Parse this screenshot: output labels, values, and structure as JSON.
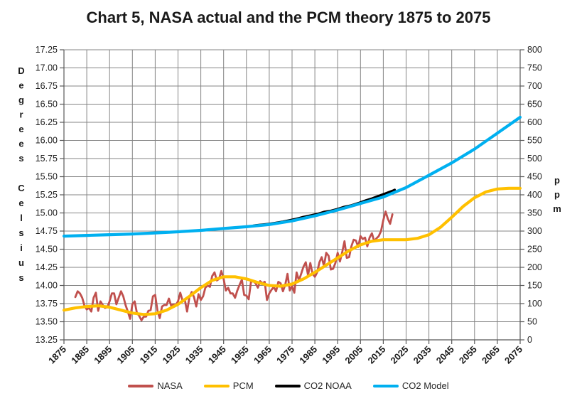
{
  "chart_data": {
    "type": "line",
    "title": "Chart 5, NASA actual and the PCM theory 1875 to 2075",
    "grid": true,
    "grid_color": "#848484",
    "axis_color": "#595959",
    "text_color": "#1a1a1a",
    "legend_position": "bottom",
    "x_axis": {
      "min": 1875,
      "max": 2075,
      "tick_step": 10,
      "ticks": [
        "1875",
        "1885",
        "1895",
        "1905",
        "1915",
        "1925",
        "1935",
        "1945",
        "1955",
        "1965",
        "1975",
        "1985",
        "1995",
        "2005",
        "2015",
        "2025",
        "2035",
        "2045",
        "2055",
        "2065",
        "2075"
      ]
    },
    "y_left": {
      "label": "Degrees Celsius",
      "min": 13.25,
      "max": 17.25,
      "tick_step": 0.25,
      "ticks": [
        "17.25",
        "17.00",
        "16.75",
        "16.50",
        "16.25",
        "16.00",
        "15.75",
        "15.50",
        "15.25",
        "15.00",
        "14.75",
        "14.50",
        "14.25",
        "14.00",
        "13.75",
        "13.50",
        "13.25"
      ]
    },
    "y_right": {
      "label": "ppm",
      "min": 0,
      "max": 800,
      "tick_step": 50,
      "ticks": [
        "800",
        "750",
        "700",
        "650",
        "600",
        "550",
        "500",
        "450",
        "400",
        "350",
        "300",
        "250",
        "200",
        "150",
        "100",
        "50",
        "0"
      ]
    },
    "series": [
      {
        "name": "NASA",
        "axis": "left",
        "color": "#C0504D",
        "width": 2.8,
        "z": 2,
        "points": [
          [
            1880,
            13.84
          ],
          [
            1881,
            13.92
          ],
          [
            1882,
            13.89
          ],
          [
            1883,
            13.83
          ],
          [
            1884,
            13.72
          ],
          [
            1885,
            13.67
          ],
          [
            1886,
            13.69
          ],
          [
            1887,
            13.64
          ],
          [
            1888,
            13.83
          ],
          [
            1889,
            13.9
          ],
          [
            1890,
            13.65
          ],
          [
            1891,
            13.78
          ],
          [
            1892,
            13.73
          ],
          [
            1893,
            13.69
          ],
          [
            1894,
            13.7
          ],
          [
            1895,
            13.78
          ],
          [
            1896,
            13.89
          ],
          [
            1897,
            13.89
          ],
          [
            1898,
            13.74
          ],
          [
            1899,
            13.83
          ],
          [
            1900,
            13.92
          ],
          [
            1901,
            13.85
          ],
          [
            1902,
            13.73
          ],
          [
            1903,
            13.64
          ],
          [
            1904,
            13.54
          ],
          [
            1905,
            13.74
          ],
          [
            1906,
            13.78
          ],
          [
            1907,
            13.62
          ],
          [
            1908,
            13.58
          ],
          [
            1909,
            13.52
          ],
          [
            1910,
            13.57
          ],
          [
            1911,
            13.57
          ],
          [
            1912,
            13.65
          ],
          [
            1913,
            13.66
          ],
          [
            1914,
            13.85
          ],
          [
            1915,
            13.87
          ],
          [
            1916,
            13.65
          ],
          [
            1917,
            13.55
          ],
          [
            1918,
            13.71
          ],
          [
            1919,
            13.73
          ],
          [
            1920,
            13.73
          ],
          [
            1921,
            13.82
          ],
          [
            1922,
            13.72
          ],
          [
            1923,
            13.74
          ],
          [
            1924,
            13.73
          ],
          [
            1925,
            13.78
          ],
          [
            1926,
            13.9
          ],
          [
            1927,
            13.79
          ],
          [
            1928,
            13.8
          ],
          [
            1929,
            13.64
          ],
          [
            1930,
            13.84
          ],
          [
            1931,
            13.91
          ],
          [
            1932,
            13.84
          ],
          [
            1933,
            13.71
          ],
          [
            1934,
            13.88
          ],
          [
            1935,
            13.8
          ],
          [
            1936,
            13.85
          ],
          [
            1937,
            13.97
          ],
          [
            1938,
            14.0
          ],
          [
            1939,
            13.98
          ],
          [
            1940,
            14.13
          ],
          [
            1941,
            14.18
          ],
          [
            1942,
            14.07
          ],
          [
            1943,
            14.09
          ],
          [
            1944,
            14.2
          ],
          [
            1945,
            14.09
          ],
          [
            1946,
            13.93
          ],
          [
            1947,
            13.97
          ],
          [
            1948,
            13.89
          ],
          [
            1949,
            13.89
          ],
          [
            1950,
            13.83
          ],
          [
            1951,
            13.93
          ],
          [
            1952,
            14.01
          ],
          [
            1953,
            14.08
          ],
          [
            1954,
            13.87
          ],
          [
            1955,
            13.86
          ],
          [
            1956,
            13.81
          ],
          [
            1957,
            14.05
          ],
          [
            1958,
            14.06
          ],
          [
            1959,
            14.03
          ],
          [
            1960,
            13.97
          ],
          [
            1961,
            14.06
          ],
          [
            1962,
            14.03
          ],
          [
            1963,
            14.05
          ],
          [
            1964,
            13.8
          ],
          [
            1965,
            13.89
          ],
          [
            1966,
            13.94
          ],
          [
            1967,
            13.98
          ],
          [
            1968,
            13.92
          ],
          [
            1969,
            14.05
          ],
          [
            1970,
            14.03
          ],
          [
            1971,
            13.92
          ],
          [
            1972,
            14.01
          ],
          [
            1973,
            14.16
          ],
          [
            1974,
            13.93
          ],
          [
            1975,
            13.99
          ],
          [
            1976,
            13.9
          ],
          [
            1977,
            14.18
          ],
          [
            1978,
            14.07
          ],
          [
            1979,
            14.16
          ],
          [
            1980,
            14.26
          ],
          [
            1981,
            14.32
          ],
          [
            1982,
            14.14
          ],
          [
            1983,
            14.31
          ],
          [
            1984,
            14.16
          ],
          [
            1985,
            14.12
          ],
          [
            1986,
            14.18
          ],
          [
            1987,
            14.32
          ],
          [
            1988,
            14.39
          ],
          [
            1989,
            14.27
          ],
          [
            1990,
            14.45
          ],
          [
            1991,
            14.41
          ],
          [
            1992,
            14.22
          ],
          [
            1993,
            14.23
          ],
          [
            1994,
            14.31
          ],
          [
            1995,
            14.45
          ],
          [
            1996,
            14.33
          ],
          [
            1997,
            14.46
          ],
          [
            1998,
            14.61
          ],
          [
            1999,
            14.38
          ],
          [
            2000,
            14.39
          ],
          [
            2001,
            14.54
          ],
          [
            2002,
            14.63
          ],
          [
            2003,
            14.62
          ],
          [
            2004,
            14.53
          ],
          [
            2005,
            14.68
          ],
          [
            2006,
            14.64
          ],
          [
            2007,
            14.66
          ],
          [
            2008,
            14.54
          ],
          [
            2009,
            14.66
          ],
          [
            2010,
            14.72
          ],
          [
            2011,
            14.61
          ],
          [
            2012,
            14.65
          ],
          [
            2013,
            14.68
          ],
          [
            2014,
            14.75
          ],
          [
            2015,
            14.9
          ],
          [
            2016,
            15.02
          ],
          [
            2017,
            14.92
          ],
          [
            2018,
            14.85
          ],
          [
            2019,
            14.98
          ]
        ]
      },
      {
        "name": "PCM",
        "axis": "left",
        "color": "#FFC000",
        "width": 4.2,
        "z": 3,
        "points": [
          [
            1875,
            13.66
          ],
          [
            1880,
            13.69
          ],
          [
            1885,
            13.71
          ],
          [
            1890,
            13.72
          ],
          [
            1895,
            13.7
          ],
          [
            1900,
            13.66
          ],
          [
            1905,
            13.62
          ],
          [
            1910,
            13.6
          ],
          [
            1915,
            13.61
          ],
          [
            1920,
            13.66
          ],
          [
            1925,
            13.74
          ],
          [
            1930,
            13.85
          ],
          [
            1935,
            13.97
          ],
          [
            1940,
            14.07
          ],
          [
            1945,
            14.12
          ],
          [
            1950,
            14.12
          ],
          [
            1955,
            14.09
          ],
          [
            1960,
            14.04
          ],
          [
            1965,
            14.0
          ],
          [
            1970,
            13.99
          ],
          [
            1975,
            14.02
          ],
          [
            1980,
            14.09
          ],
          [
            1985,
            14.18
          ],
          [
            1990,
            14.28
          ],
          [
            1995,
            14.38
          ],
          [
            2000,
            14.48
          ],
          [
            2005,
            14.56
          ],
          [
            2010,
            14.61
          ],
          [
            2015,
            14.63
          ],
          [
            2020,
            14.63
          ],
          [
            2025,
            14.63
          ],
          [
            2030,
            14.65
          ],
          [
            2035,
            14.7
          ],
          [
            2040,
            14.8
          ],
          [
            2045,
            14.94
          ],
          [
            2050,
            15.09
          ],
          [
            2055,
            15.21
          ],
          [
            2060,
            15.29
          ],
          [
            2065,
            15.33
          ],
          [
            2070,
            15.34
          ],
          [
            2075,
            15.34
          ]
        ]
      },
      {
        "name": "CO2 NOAA",
        "axis": "right",
        "color": "#000000",
        "width": 3.2,
        "z": 0,
        "points": [
          [
            1958,
            315
          ],
          [
            1959,
            316
          ],
          [
            1962,
            318
          ],
          [
            1965,
            320
          ],
          [
            1968,
            323
          ],
          [
            1971,
            326
          ],
          [
            1974,
            330
          ],
          [
            1977,
            334
          ],
          [
            1980,
            339
          ],
          [
            1983,
            343
          ],
          [
            1986,
            347
          ],
          [
            1989,
            353
          ],
          [
            1992,
            356
          ],
          [
            1995,
            361
          ],
          [
            1998,
            367
          ],
          [
            2001,
            371
          ],
          [
            2004,
            377
          ],
          [
            2007,
            384
          ],
          [
            2010,
            390
          ],
          [
            2013,
            397
          ],
          [
            2016,
            404
          ],
          [
            2019,
            411
          ],
          [
            2020,
            414
          ]
        ]
      },
      {
        "name": "CO2 Model",
        "axis": "right",
        "color": "#00B0F0",
        "width": 4.2,
        "z": 1,
        "points": [
          [
            1875,
            286
          ],
          [
            1885,
            288
          ],
          [
            1895,
            290
          ],
          [
            1905,
            292
          ],
          [
            1915,
            295
          ],
          [
            1925,
            298
          ],
          [
            1935,
            302
          ],
          [
            1945,
            307
          ],
          [
            1955,
            312
          ],
          [
            1965,
            318
          ],
          [
            1975,
            328
          ],
          [
            1985,
            342
          ],
          [
            1995,
            358
          ],
          [
            2005,
            376
          ],
          [
            2015,
            394
          ],
          [
            2025,
            420
          ],
          [
            2035,
            454
          ],
          [
            2045,
            488
          ],
          [
            2055,
            526
          ],
          [
            2065,
            570
          ],
          [
            2075,
            614
          ]
        ]
      }
    ]
  }
}
